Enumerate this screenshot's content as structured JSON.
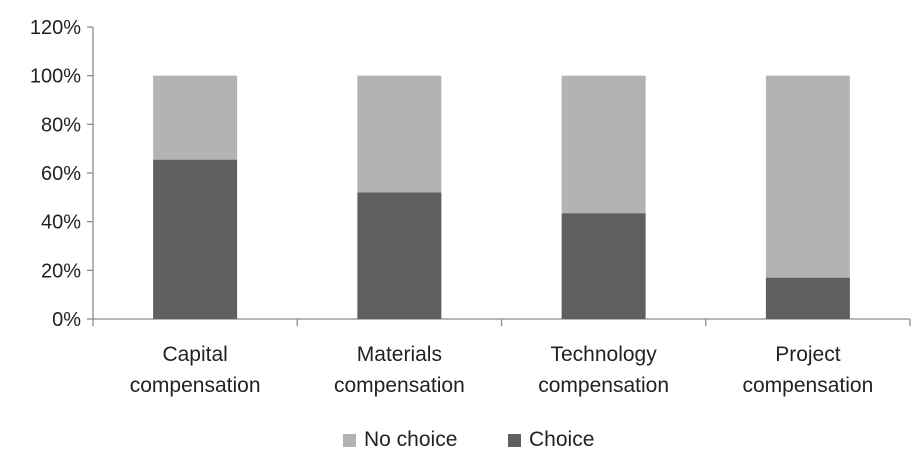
{
  "chart_data": {
    "type": "bar",
    "stacked": true,
    "categories": [
      [
        "Capital",
        "compensation"
      ],
      [
        "Materials",
        "compensation"
      ],
      [
        "Technology",
        "compensation"
      ],
      [
        "Project",
        "compensation"
      ]
    ],
    "series": [
      {
        "name": "Choice",
        "values": [
          65.5,
          52,
          43.5,
          17
        ],
        "color": "#5f5f5f"
      },
      {
        "name": "No choice",
        "values": [
          34.5,
          48,
          56.5,
          83
        ],
        "color": "#b3b3b3"
      }
    ],
    "ylim": [
      0,
      120
    ],
    "yticks": [
      0,
      20,
      40,
      60,
      80,
      100,
      120
    ],
    "ytick_format": "percent",
    "grid": false,
    "legend": {
      "position": "bottom",
      "order": [
        "No choice",
        "Choice"
      ]
    },
    "axis_color": "#8c8c8c"
  }
}
